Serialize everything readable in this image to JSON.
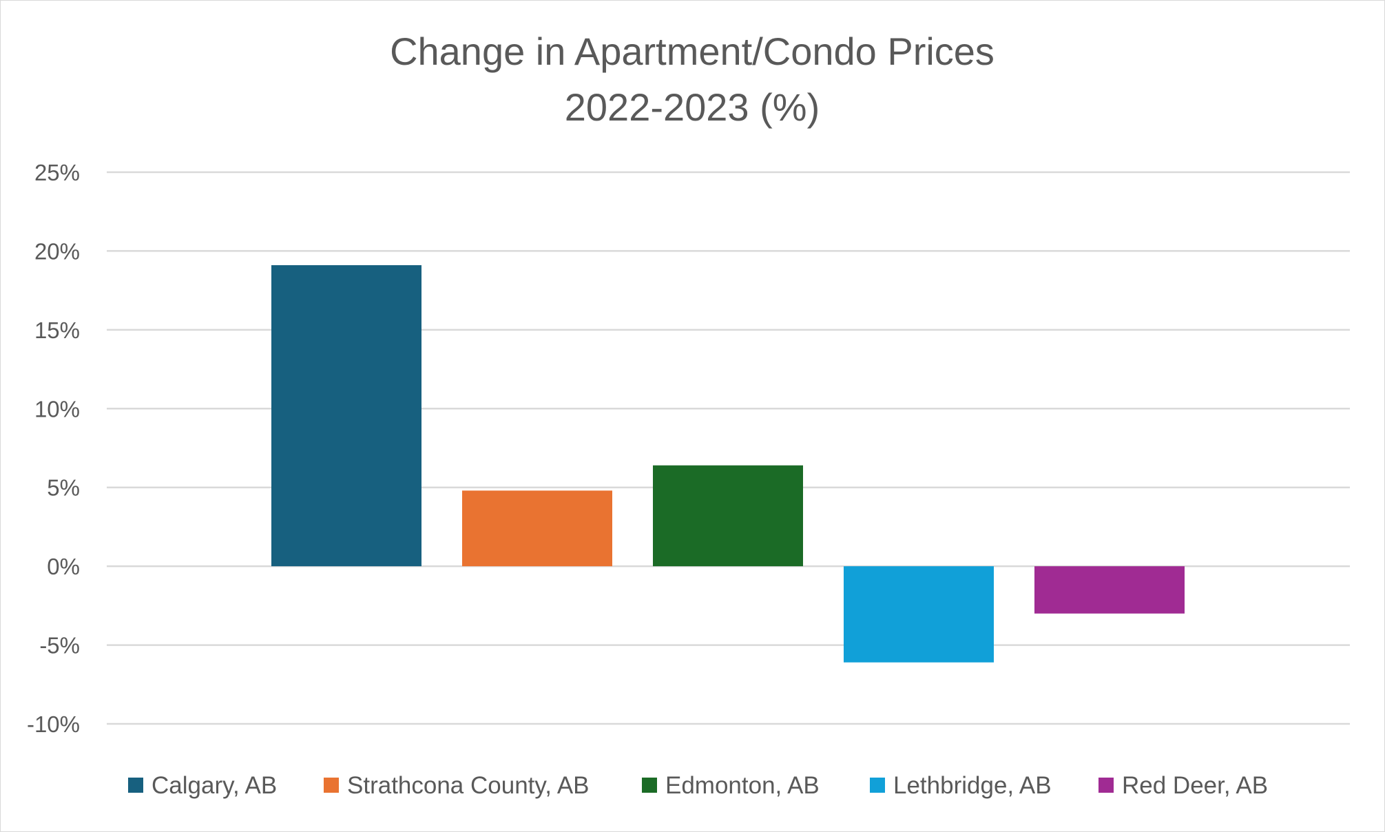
{
  "chart_data": {
    "type": "bar",
    "title": [
      "Change in Apartment/Condo Prices",
      "2022-2023 (%)"
    ],
    "xlabel": "",
    "ylabel": "",
    "ylim": [
      -10,
      25
    ],
    "yticks": [
      25,
      20,
      15,
      10,
      5,
      0,
      -5,
      -10
    ],
    "ytick_labels": [
      "25%",
      "20%",
      "15%",
      "10%",
      "5%",
      "0%",
      "-5%",
      "-10%"
    ],
    "grid": true,
    "legend_position": "bottom",
    "series": [
      {
        "name": "Calgary, AB",
        "value": 19.1,
        "color": "#17607f"
      },
      {
        "name": "Strathcona County, AB",
        "value": 4.8,
        "color": "#e97331"
      },
      {
        "name": "Edmonton, AB",
        "value": 6.4,
        "color": "#1b6b26"
      },
      {
        "name": "Lethbridge, AB",
        "value": -6.1,
        "color": "#11a0d8"
      },
      {
        "name": "Red Deer, AB",
        "value": -3.0,
        "color": "#a02b93"
      }
    ]
  }
}
